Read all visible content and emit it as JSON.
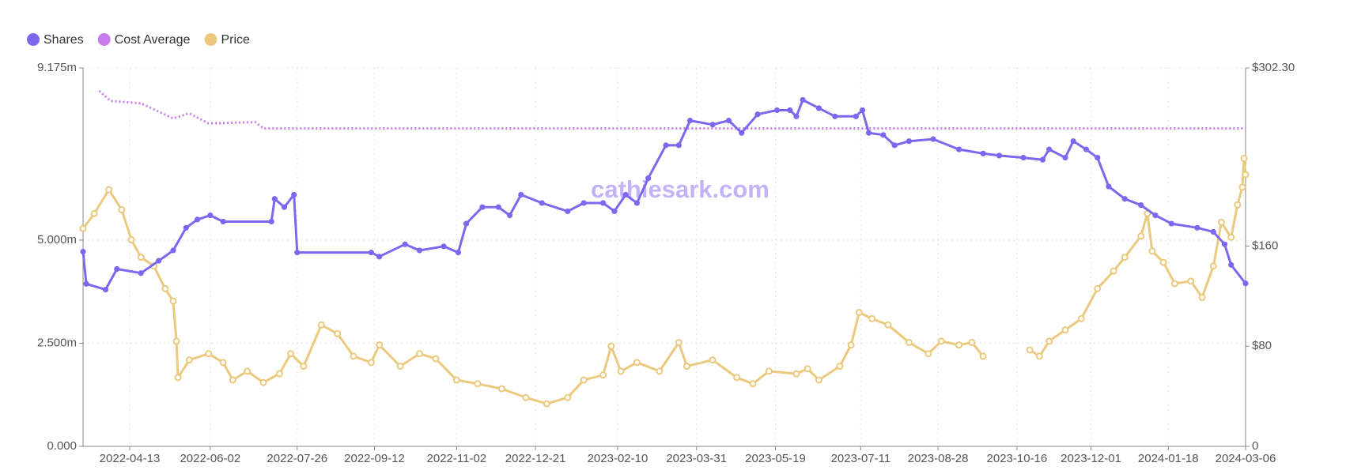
{
  "chart_data": {
    "type": "line",
    "watermark": "cathiesark.com",
    "xlim": [
      "2022-03-15",
      "2024-03-06"
    ],
    "xticks": [
      "2022-04-13",
      "2022-06-02",
      "2022-07-26",
      "2022-09-12",
      "2022-11-02",
      "2022-12-21",
      "2023-02-10",
      "2023-03-31",
      "2023-05-19",
      "2023-07-11",
      "2023-08-28",
      "2023-10-16",
      "2023-12-01",
      "2024-01-18",
      "2024-03-06"
    ],
    "ylim": [
      0,
      9175000
    ],
    "yticks": [
      {
        "value": 0,
        "label": "0.000"
      },
      {
        "value": 2500000,
        "label": "2.500m"
      },
      {
        "value": 5000000,
        "label": "5.000m"
      },
      {
        "value": 9175000,
        "label": "9.175m"
      }
    ],
    "y2lim": [
      0,
      302.3
    ],
    "y2ticks": [
      0,
      {
        "value": 80,
        "label": "$80"
      },
      {
        "value": 160,
        "label": "$160"
      },
      {
        "value": 302.3,
        "label": "$302.30"
      }
    ],
    "grid": true,
    "legend": "top-left",
    "series": [
      {
        "name": "Shares",
        "color": "#7b68ee",
        "marker": "filled",
        "x": [
          "2022-03-15",
          "2022-03-17",
          "2022-03-29",
          "2022-04-05",
          "2022-04-20",
          "2022-05-01",
          "2022-05-10",
          "2022-05-18",
          "2022-05-25",
          "2022-06-02",
          "2022-06-10",
          "2022-07-10",
          "2022-07-12",
          "2022-07-18",
          "2022-07-24",
          "2022-07-26",
          "2022-09-10",
          "2022-09-15",
          "2022-10-01",
          "2022-10-10",
          "2022-10-25",
          "2022-11-03",
          "2022-11-08",
          "2022-11-18",
          "2022-11-28",
          "2022-12-05",
          "2022-12-12",
          "2022-12-25",
          "2023-01-10",
          "2023-01-20",
          "2023-02-01",
          "2023-02-08",
          "2023-02-15",
          "2023-02-22",
          "2023-03-01",
          "2023-03-12",
          "2023-03-20",
          "2023-03-27",
          "2023-04-10",
          "2023-04-20",
          "2023-04-28",
          "2023-05-08",
          "2023-05-20",
          "2023-05-28",
          "2023-06-01",
          "2023-06-05",
          "2023-06-15",
          "2023-06-25",
          "2023-07-08",
          "2023-07-12",
          "2023-07-16",
          "2023-07-25",
          "2023-08-01",
          "2023-08-10",
          "2023-08-25",
          "2023-09-10",
          "2023-09-25",
          "2023-10-05",
          "2023-10-20",
          "2023-11-01",
          "2023-11-05",
          "2023-11-15",
          "2023-11-20",
          "2023-11-28",
          "2023-12-05",
          "2023-12-12",
          "2023-12-22",
          "2024-01-01",
          "2024-01-10",
          "2024-01-20",
          "2024-02-05",
          "2024-02-15",
          "2024-02-22",
          "2024-02-26",
          "2024-03-06"
        ],
        "values": [
          4720000,
          3940000,
          3800000,
          4300000,
          4200000,
          4500000,
          4750000,
          5300000,
          5500000,
          5600000,
          5450000,
          5450000,
          6000000,
          5800000,
          6100000,
          4700000,
          4700000,
          4600000,
          4900000,
          4750000,
          4850000,
          4700000,
          5400000,
          5800000,
          5800000,
          5600000,
          6100000,
          5900000,
          5700000,
          5900000,
          5900000,
          5700000,
          6100000,
          5900000,
          6500000,
          7300000,
          7300000,
          7900000,
          7800000,
          7900000,
          7600000,
          8050000,
          8150000,
          8150000,
          8000000,
          8400000,
          8200000,
          8000000,
          8000000,
          8150000,
          7600000,
          7550000,
          7300000,
          7400000,
          7450000,
          7200000,
          7100000,
          7050000,
          7000000,
          6950000,
          7200000,
          7000000,
          7400000,
          7200000,
          7000000,
          6300000,
          6000000,
          5850000,
          5600000,
          5400000,
          5300000,
          5200000,
          4900000,
          4400000,
          3950000
        ]
      },
      {
        "name": "Cost Average",
        "color": "#c77dea",
        "axis": "y2",
        "marker": "none",
        "x": [
          "2022-03-25",
          "2022-04-01",
          "2022-04-20",
          "2022-05-10",
          "2022-05-20",
          "2022-06-01",
          "2022-06-30",
          "2022-07-05",
          "2024-03-06"
        ],
        "values": [
          284,
          276,
          274,
          262,
          266,
          258,
          259,
          254,
          254
        ]
      },
      {
        "name": "Price",
        "color": "#ebc97e",
        "axis": "y2",
        "marker": "hollow",
        "x": [
          "2022-03-15",
          "2022-03-22",
          "2022-03-31",
          "2022-04-08",
          "2022-04-14",
          "2022-04-20",
          "2022-04-28",
          "2022-05-05",
          "2022-05-10",
          "2022-05-12",
          "2022-05-13",
          "2022-05-20",
          "2022-06-01",
          "2022-06-10",
          "2022-06-16",
          "2022-06-25",
          "2022-07-05",
          "2022-07-15",
          "2022-07-22",
          "2022-07-30",
          "2022-08-10",
          "2022-08-20",
          "2022-08-30",
          "2022-09-10",
          "2022-09-15",
          "2022-09-28",
          "2022-10-10",
          "2022-10-20",
          "2022-11-02",
          "2022-11-15",
          "2022-11-30",
          "2022-12-15",
          "2022-12-28",
          "2023-01-10",
          "2023-01-20",
          "2023-02-01",
          "2023-02-06",
          "2023-02-12",
          "2023-02-22",
          "2023-03-08",
          "2023-03-20",
          "2023-03-25",
          "2023-04-10",
          "2023-04-25",
          "2023-05-05",
          "2023-05-15",
          "2023-06-01",
          "2023-06-08",
          "2023-06-15",
          "2023-06-28",
          "2023-07-05",
          "2023-07-10",
          "2023-07-18",
          "2023-07-28",
          "2023-08-10",
          "2023-08-22",
          "2023-08-30",
          "2023-09-10",
          "2023-09-18",
          "2023-09-25",
          "2023-10-10",
          "2023-10-24",
          "2023-10-30",
          "2023-11-05",
          "2023-11-15",
          "2023-11-25",
          "2023-12-05",
          "2023-12-15",
          "2023-12-22",
          "2024-01-01",
          "2024-01-05",
          "2024-01-08",
          "2024-01-15",
          "2024-01-22",
          "2024-02-01",
          "2024-02-08",
          "2024-02-15",
          "2024-02-20",
          "2024-02-26",
          "2024-03-01",
          "2024-03-04",
          "2024-03-05",
          "2024-03-06"
        ],
        "values": [
          174,
          186,
          205,
          189,
          165,
          151,
          144,
          126,
          116,
          84,
          55,
          69,
          74,
          67,
          53,
          60,
          51,
          58,
          74,
          64,
          97,
          90,
          72,
          67,
          81,
          64,
          74,
          70,
          53,
          50,
          46,
          39,
          34,
          39,
          53,
          57,
          80,
          60,
          67,
          60,
          83,
          64,
          69,
          55,
          50,
          60,
          58,
          62,
          53,
          64,
          81,
          107,
          102,
          97,
          83,
          74,
          84,
          81,
          83,
          72,
          null,
          77,
          72,
          84,
          93,
          102,
          126,
          140,
          151,
          168,
          186,
          156,
          147,
          130,
          132,
          119,
          144,
          179,
          167,
          193,
          207,
          230,
          217
        ]
      }
    ]
  }
}
